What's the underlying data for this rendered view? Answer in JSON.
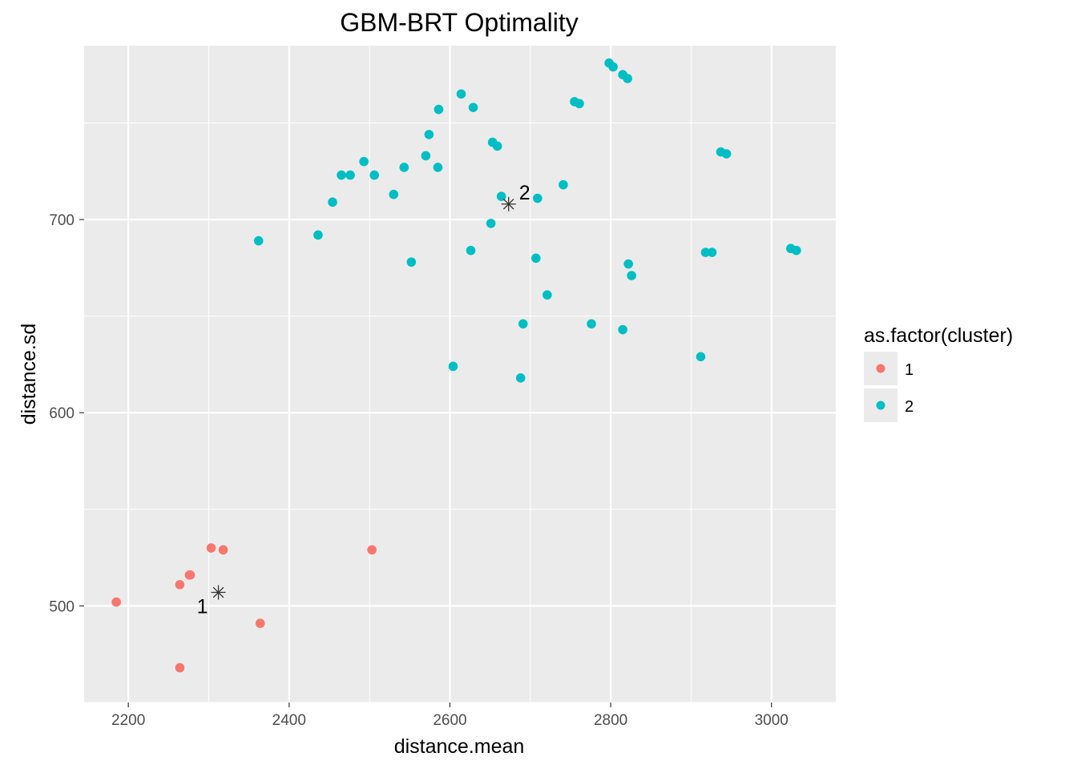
{
  "chart_data": {
    "type": "scatter",
    "title": "GBM-BRT Optimality",
    "xlabel": "distance.mean",
    "ylabel": "distance.sd",
    "xlim": [
      2145,
      3080
    ],
    "ylim": [
      450,
      790
    ],
    "x_ticks": [
      2200,
      2400,
      2600,
      2800,
      3000
    ],
    "y_ticks": [
      500,
      600,
      700
    ],
    "grid": true,
    "legend": {
      "title": "as.factor(cluster)",
      "position": "right",
      "entries": [
        {
          "label": "1",
          "color": "#F8766D"
        },
        {
          "label": "2",
          "color": "#00BFC4"
        }
      ]
    },
    "series": [
      {
        "name": "1",
        "color": "#F8766D",
        "points": [
          [
            2185,
            502
          ],
          [
            2264,
            511
          ],
          [
            2276,
            516
          ],
          [
            2277,
            516
          ],
          [
            2303,
            530
          ],
          [
            2318,
            529
          ],
          [
            2503,
            529
          ],
          [
            2364,
            491
          ],
          [
            2264,
            468
          ]
        ]
      },
      {
        "name": "2",
        "color": "#00BFC4",
        "points": [
          [
            2362,
            689
          ],
          [
            2436,
            692
          ],
          [
            2454,
            709
          ],
          [
            2465,
            723
          ],
          [
            2476,
            723
          ],
          [
            2493,
            730
          ],
          [
            2506,
            723
          ],
          [
            2530,
            713
          ],
          [
            2543,
            727
          ],
          [
            2552,
            678
          ],
          [
            2570,
            733
          ],
          [
            2574,
            744
          ],
          [
            2585,
            727
          ],
          [
            2586,
            757
          ],
          [
            2604,
            624
          ],
          [
            2614,
            765
          ],
          [
            2626,
            684
          ],
          [
            2629,
            758
          ],
          [
            2651,
            698
          ],
          [
            2653,
            740
          ],
          [
            2659,
            738
          ],
          [
            2664,
            712
          ],
          [
            2688,
            618
          ],
          [
            2691,
            646
          ],
          [
            2707,
            680
          ],
          [
            2709,
            711
          ],
          [
            2721,
            661
          ],
          [
            2741,
            718
          ],
          [
            2776,
            646
          ],
          [
            2755,
            761
          ],
          [
            2761,
            760
          ],
          [
            2798,
            781
          ],
          [
            2803,
            779
          ],
          [
            2815,
            775
          ],
          [
            2821,
            773
          ],
          [
            2815,
            643
          ],
          [
            2822,
            677
          ],
          [
            2826,
            671
          ],
          [
            2912,
            629
          ],
          [
            2918,
            683
          ],
          [
            2926,
            683
          ],
          [
            2937,
            735
          ],
          [
            2944,
            734
          ],
          [
            3024,
            685
          ],
          [
            3031,
            684
          ]
        ]
      }
    ],
    "centroids": [
      {
        "label": "1",
        "x": 2312,
        "y": 507
      },
      {
        "label": "2",
        "x": 2673,
        "y": 708
      }
    ]
  }
}
